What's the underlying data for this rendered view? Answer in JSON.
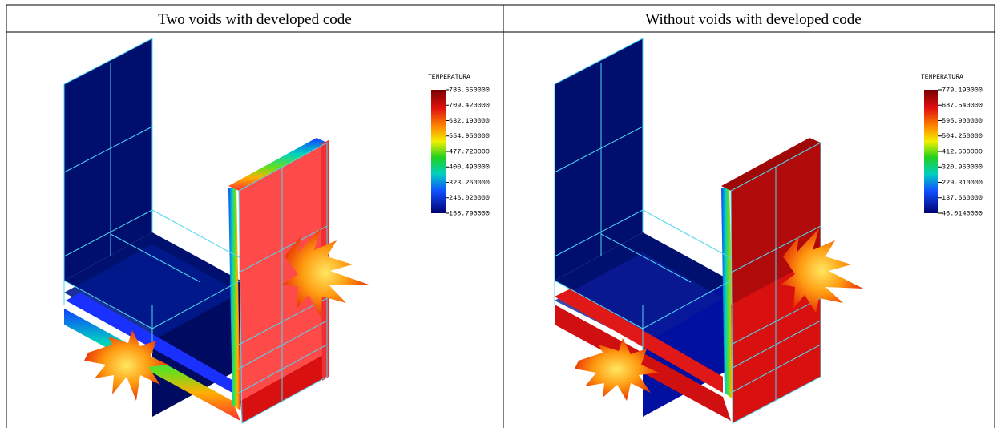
{
  "headers": [
    "Two voids with developed code",
    "Without voids with developed code"
  ],
  "panels": [
    {
      "legend_title": "TEMPERATURA",
      "legend_labels": [
        "786.650000",
        "709.420000",
        "632.190000",
        "554.950000",
        "477.720000",
        "400.490000",
        "323.260000",
        "246.020000",
        "168.790000"
      ]
    },
    {
      "legend_title": "TEMPERATURA",
      "legend_labels": [
        "779.190000",
        "687.540000",
        "595.900000",
        "504.250000",
        "412.600000",
        "320.960000",
        "229.310000",
        "137.660000",
        "46.0140000"
      ]
    }
  ]
}
